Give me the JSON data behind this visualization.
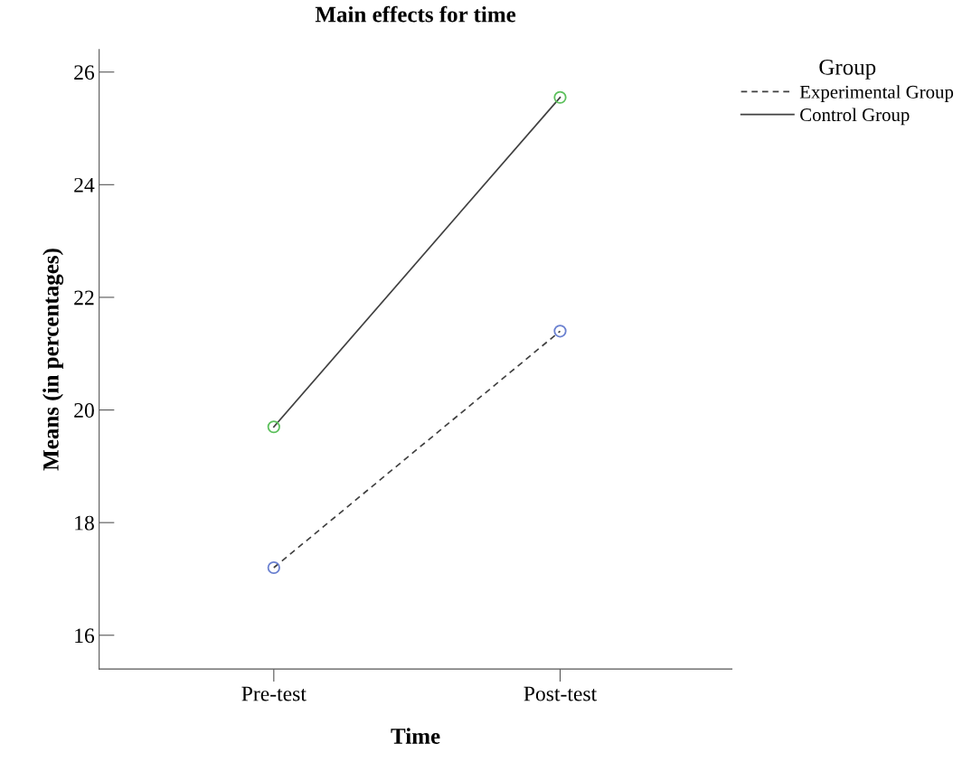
{
  "chart_data": {
    "type": "line",
    "title": "Main effects for time",
    "xlabel": "Time",
    "ylabel": "Means (in percentages)",
    "legend_title": "Group",
    "categories": [
      "Pre-test",
      "Post-test"
    ],
    "series": [
      {
        "name": "Experimental Group",
        "color": "#404040",
        "colors": [
          "#6a80d0",
          "#6a80d0"
        ],
        "line_style": "dashed",
        "values": [
          17.2,
          21.4
        ]
      },
      {
        "name": "Control Group",
        "color": "#404040",
        "colors": [
          "#5cc05c",
          "#5cc05c"
        ],
        "line_style": "solid",
        "values": [
          19.7,
          25.55
        ]
      }
    ],
    "ylim": [
      15.4,
      26.4
    ],
    "yticks": [
      16,
      18,
      20,
      22,
      24,
      26
    ],
    "grid": false,
    "legend": "top right",
    "marker": "circle"
  }
}
